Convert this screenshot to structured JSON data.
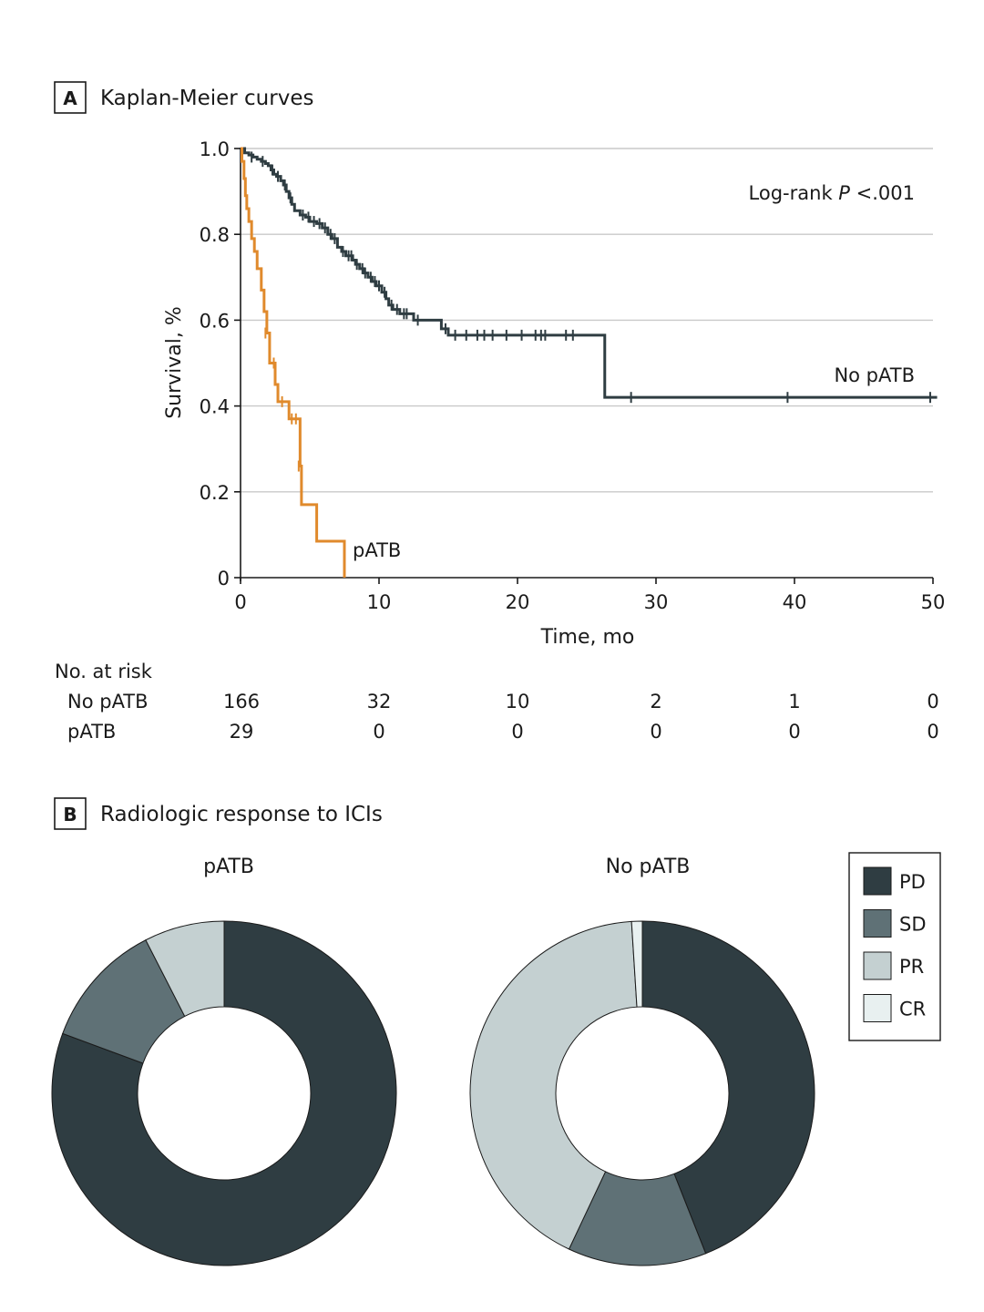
{
  "panel_a": {
    "letter": "A",
    "title": "Kaplan-Meier curves"
  },
  "panel_b": {
    "letter": "B",
    "title": "Radiologic response to ICIs"
  },
  "colors": {
    "no_patb": "#2f3d42",
    "patb": "#e08a2c",
    "grid": "#c9c9c9",
    "PD": "#2f3d42",
    "SD": "#5f7176",
    "PR": "#c4d0d1",
    "CR": "#e8f0f0"
  },
  "chart_data": [
    {
      "type": "line",
      "subtype": "kaplan-meier",
      "title": "Kaplan-Meier curves",
      "xlabel": "Time, mo",
      "ylabel": "Survival, %",
      "xlim": [
        0,
        50
      ],
      "ylim": [
        0,
        1.0
      ],
      "xticks": [
        0,
        10,
        20,
        30,
        40,
        50
      ],
      "xtick_labels": [
        "0",
        "10",
        "20",
        "30",
        "40",
        "50"
      ],
      "yticks": [
        0,
        0.2,
        0.4,
        0.6,
        0.8,
        1.0
      ],
      "ytick_labels": [
        "0",
        "0.2",
        "0.4",
        "0.6",
        "0.8",
        "1.0"
      ],
      "grid": true,
      "annotation": {
        "prefix": "Log-rank ",
        "italic": "P",
        "suffix": " <.001"
      },
      "series": [
        {
          "name": "No pATB",
          "label": "No pATB",
          "color": "#2f3d42",
          "steps": [
            [
              0,
              1.0
            ],
            [
              0.3,
              0.99
            ],
            [
              0.6,
              0.985
            ],
            [
              0.9,
              0.98
            ],
            [
              1.2,
              0.975
            ],
            [
              1.5,
              0.97
            ],
            [
              1.8,
              0.965
            ],
            [
              2.0,
              0.96
            ],
            [
              2.2,
              0.95
            ],
            [
              2.4,
              0.94
            ],
            [
              2.6,
              0.935
            ],
            [
              2.9,
              0.925
            ],
            [
              3.1,
              0.915
            ],
            [
              3.3,
              0.9
            ],
            [
              3.5,
              0.885
            ],
            [
              3.7,
              0.87
            ],
            [
              3.9,
              0.855
            ],
            [
              4.3,
              0.845
            ],
            [
              4.7,
              0.84
            ],
            [
              5.0,
              0.83
            ],
            [
              5.5,
              0.825
            ],
            [
              5.9,
              0.815
            ],
            [
              6.3,
              0.8
            ],
            [
              6.6,
              0.79
            ],
            [
              7.0,
              0.77
            ],
            [
              7.3,
              0.76
            ],
            [
              7.6,
              0.75
            ],
            [
              8.1,
              0.74
            ],
            [
              8.3,
              0.73
            ],
            [
              8.6,
              0.72
            ],
            [
              8.9,
              0.71
            ],
            [
              9.2,
              0.7
            ],
            [
              9.5,
              0.69
            ],
            [
              9.8,
              0.68
            ],
            [
              10.2,
              0.665
            ],
            [
              10.5,
              0.65
            ],
            [
              10.7,
              0.635
            ],
            [
              11.0,
              0.625
            ],
            [
              11.5,
              0.615
            ],
            [
              12.5,
              0.6
            ],
            [
              14.5,
              0.58
            ],
            [
              15.0,
              0.565
            ],
            [
              26.3,
              0.42
            ]
          ],
          "end_x": 50.3,
          "censors": [
            [
              0.8,
              0.98
            ],
            [
              1.6,
              0.97
            ],
            [
              2.3,
              0.95
            ],
            [
              2.7,
              0.935
            ],
            [
              3.2,
              0.915
            ],
            [
              3.6,
              0.885
            ],
            [
              4.5,
              0.845
            ],
            [
              4.9,
              0.84
            ],
            [
              5.3,
              0.83
            ],
            [
              5.7,
              0.825
            ],
            [
              6.1,
              0.815
            ],
            [
              6.5,
              0.8
            ],
            [
              6.8,
              0.79
            ],
            [
              7.4,
              0.76
            ],
            [
              7.8,
              0.75
            ],
            [
              8.0,
              0.75
            ],
            [
              8.4,
              0.73
            ],
            [
              8.8,
              0.72
            ],
            [
              9.0,
              0.71
            ],
            [
              9.4,
              0.7
            ],
            [
              9.7,
              0.69
            ],
            [
              10.0,
              0.68
            ],
            [
              10.4,
              0.665
            ],
            [
              10.9,
              0.635
            ],
            [
              11.3,
              0.625
            ],
            [
              11.8,
              0.615
            ],
            [
              12.0,
              0.615
            ],
            [
              12.8,
              0.6
            ],
            [
              14.8,
              0.58
            ],
            [
              15.5,
              0.565
            ],
            [
              16.3,
              0.565
            ],
            [
              17.1,
              0.565
            ],
            [
              17.6,
              0.565
            ],
            [
              18.2,
              0.565
            ],
            [
              19.2,
              0.565
            ],
            [
              20.3,
              0.565
            ],
            [
              21.3,
              0.565
            ],
            [
              21.7,
              0.565
            ],
            [
              22.0,
              0.565
            ],
            [
              23.5,
              0.565
            ],
            [
              24.0,
              0.565
            ],
            [
              28.2,
              0.42
            ],
            [
              39.5,
              0.42
            ],
            [
              49.8,
              0.42
            ]
          ]
        },
        {
          "name": "pATB",
          "label": "pATB",
          "color": "#e08a2c",
          "steps": [
            [
              0,
              1.0
            ],
            [
              0.1,
              0.97
            ],
            [
              0.25,
              0.93
            ],
            [
              0.35,
              0.89
            ],
            [
              0.45,
              0.86
            ],
            [
              0.6,
              0.83
            ],
            [
              0.8,
              0.79
            ],
            [
              1.0,
              0.76
            ],
            [
              1.2,
              0.72
            ],
            [
              1.5,
              0.67
            ],
            [
              1.7,
              0.62
            ],
            [
              1.9,
              0.57
            ],
            [
              2.1,
              0.5
            ],
            [
              2.5,
              0.45
            ],
            [
              2.7,
              0.41
            ],
            [
              3.5,
              0.37
            ],
            [
              4.3,
              0.26
            ],
            [
              4.4,
              0.17
            ],
            [
              5.5,
              0.085
            ],
            [
              7.5,
              0
            ]
          ],
          "end_x": 7.5,
          "censors": [
            [
              1.8,
              0.57
            ],
            [
              2.4,
              0.5
            ],
            [
              3.0,
              0.41
            ],
            [
              3.7,
              0.37
            ],
            [
              4.0,
              0.37
            ],
            [
              4.2,
              0.26
            ]
          ]
        }
      ],
      "risk_table": {
        "header": "No. at risk",
        "times": [
          0,
          10,
          20,
          30,
          40,
          50
        ],
        "rows": [
          {
            "label": "No pATB",
            "values": [
              "166",
              "32",
              "10",
              "2",
              "1",
              "0"
            ]
          },
          {
            "label": "pATB",
            "values": [
              "29",
              "0",
              "0",
              "0",
              "0",
              "0"
            ]
          }
        ]
      }
    },
    {
      "type": "pie",
      "subtype": "donut",
      "title": "pATB",
      "categories": [
        "PD",
        "SD",
        "PR",
        "CR"
      ],
      "values": [
        75,
        11,
        7,
        0
      ]
    },
    {
      "type": "pie",
      "subtype": "donut",
      "title": "No pATB",
      "categories": [
        "PD",
        "SD",
        "PR",
        "CR"
      ],
      "values": [
        44,
        13,
        42,
        1
      ]
    }
  ],
  "legend": {
    "placement": "right",
    "entries": [
      "PD",
      "SD",
      "PR",
      "CR"
    ]
  }
}
